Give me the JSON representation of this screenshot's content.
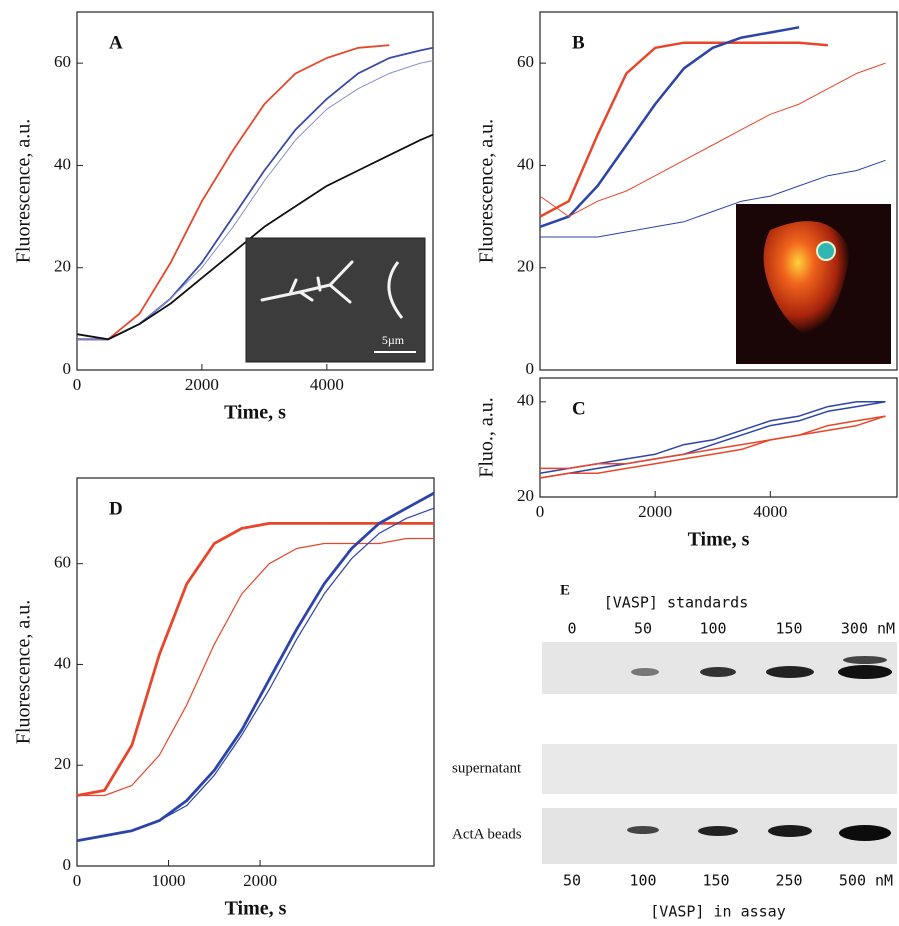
{
  "chart_data": [
    {
      "type": "line",
      "panel_label": "A",
      "xlabel": "Time, s",
      "ylabel": "Fluorescence, a.u.",
      "inset_label": "5µm",
      "x": [
        0,
        500,
        1000,
        1500,
        2000,
        2500,
        3000,
        3500,
        4000,
        4500,
        5000,
        5500,
        5700
      ],
      "xlim": [
        0,
        5700
      ],
      "ylim": [
        0,
        70
      ],
      "xticks": [
        0,
        2000,
        4000
      ],
      "yticks": [
        0,
        20,
        40,
        60
      ],
      "series": [
        {
          "color": "#e8462a",
          "linewidth": 1.8,
          "values": [
            6,
            6,
            11,
            21,
            33,
            43,
            52,
            58,
            61,
            63,
            63.5,
            null,
            null
          ]
        },
        {
          "color": "#3a4aa8",
          "linewidth": 1.8,
          "values": [
            6,
            6,
            9,
            14,
            21,
            30,
            39,
            47,
            53,
            58,
            61,
            62.5,
            63
          ]
        },
        {
          "color": "#8a90cc",
          "linewidth": 1,
          "values": [
            6,
            6,
            9,
            14,
            20,
            28,
            37,
            45,
            51,
            55,
            58,
            60,
            60.5
          ]
        },
        {
          "color": "#111111",
          "linewidth": 1.8,
          "values": [
            7,
            6,
            9,
            13,
            18,
            23,
            28,
            32,
            36,
            39,
            42,
            45,
            46
          ]
        }
      ]
    },
    {
      "type": "line",
      "panel_label": "B",
      "ylabel": "Fluorescence, a.u.",
      "x": [
        0,
        500,
        1000,
        1500,
        2000,
        2500,
        3000,
        3500,
        4000,
        4500,
        5000,
        5500,
        6000
      ],
      "xlim": [
        0,
        6200
      ],
      "ylim": [
        0,
        70
      ],
      "yticks": [
        0,
        20,
        40,
        60
      ],
      "series": [
        {
          "color": "#e8462a",
          "linewidth": 2.5,
          "values": [
            30,
            33,
            46,
            58,
            63,
            64,
            64,
            64,
            64,
            64,
            63.5,
            null,
            null
          ]
        },
        {
          "color": "#2c44a8",
          "linewidth": 2.5,
          "values": [
            28,
            30,
            36,
            44,
            52,
            59,
            63,
            65,
            66,
            67,
            null,
            null,
            null
          ]
        },
        {
          "color": "#e8462a",
          "linewidth": 1,
          "values": [
            34,
            30,
            33,
            35,
            38,
            41,
            44,
            47,
            50,
            52,
            55,
            58,
            60
          ]
        },
        {
          "color": "#2c44a8",
          "linewidth": 1,
          "values": [
            26,
            26,
            26,
            27,
            28,
            29,
            31,
            33,
            34,
            36,
            38,
            39,
            41
          ]
        }
      ]
    },
    {
      "type": "line",
      "panel_label": "C",
      "xlabel": "Time, s",
      "ylabel": "Fluo., a.u.",
      "x": [
        0,
        500,
        1000,
        1500,
        2000,
        2500,
        3000,
        3500,
        4000,
        4500,
        5000,
        5500,
        6000
      ],
      "xlim": [
        0,
        6200
      ],
      "ylim": [
        20,
        45
      ],
      "xticks": [
        0,
        2000,
        4000
      ],
      "yticks": [
        20,
        40
      ],
      "series": [
        {
          "color": "#2c44a8",
          "linewidth": 1.5,
          "values": [
            25,
            26,
            27,
            28,
            29,
            31,
            32,
            34,
            36,
            37,
            39,
            40,
            40
          ]
        },
        {
          "color": "#2c44a8",
          "linewidth": 1.5,
          "values": [
            24,
            25,
            26,
            27,
            28,
            29,
            31,
            33,
            35,
            36,
            38,
            39,
            40
          ]
        },
        {
          "color": "#e8462a",
          "linewidth": 1.5,
          "values": [
            26,
            26,
            27,
            27,
            28,
            29,
            30,
            31,
            32,
            33,
            35,
            36,
            37
          ]
        },
        {
          "color": "#e8462a",
          "linewidth": 1.5,
          "values": [
            24,
            25,
            25,
            26,
            27,
            28,
            29,
            30,
            32,
            33,
            34,
            35,
            37
          ]
        }
      ]
    },
    {
      "type": "line",
      "panel_label": "D",
      "xlabel": "Time, s",
      "ylabel": "Fluorescence, a.u.",
      "x": [
        0,
        300,
        600,
        900,
        1200,
        1500,
        1800,
        2100,
        2400,
        2700,
        3000,
        3300,
        3600,
        3900
      ],
      "xlim": [
        0,
        3900
      ],
      "ylim": [
        0,
        77
      ],
      "xticks": [
        0,
        1000,
        2000
      ],
      "yticks": [
        0,
        20,
        40,
        60
      ],
      "series": [
        {
          "color": "#e8462a",
          "linewidth": 2.8,
          "values": [
            14,
            15,
            24,
            42,
            56,
            64,
            67,
            68,
            68,
            68,
            68,
            68,
            68,
            68
          ]
        },
        {
          "color": "#e8462a",
          "linewidth": 1.2,
          "values": [
            14,
            14,
            16,
            22,
            32,
            44,
            54,
            60,
            63,
            64,
            64,
            64,
            65,
            65
          ]
        },
        {
          "color": "#2c44a8",
          "linewidth": 2.8,
          "values": [
            5,
            6,
            7,
            9,
            13,
            19,
            27,
            37,
            47,
            56,
            63,
            68,
            71,
            74
          ]
        },
        {
          "color": "#2c44a8",
          "linewidth": 1.2,
          "values": [
            5,
            6,
            7,
            9,
            12,
            18,
            26,
            35,
            45,
            54,
            61,
            66,
            69,
            71
          ]
        }
      ]
    }
  ],
  "gel": {
    "label": "E",
    "standards_title": "[VASP] standards",
    "standards_lanes": [
      "0",
      "50",
      "100",
      "150",
      "300 nM"
    ],
    "rows": [
      "supernatant",
      "ActA beads"
    ],
    "assay_lanes": [
      "50",
      "100",
      "150",
      "250",
      "500 nM"
    ],
    "assay_title": "[VASP] in assay"
  }
}
